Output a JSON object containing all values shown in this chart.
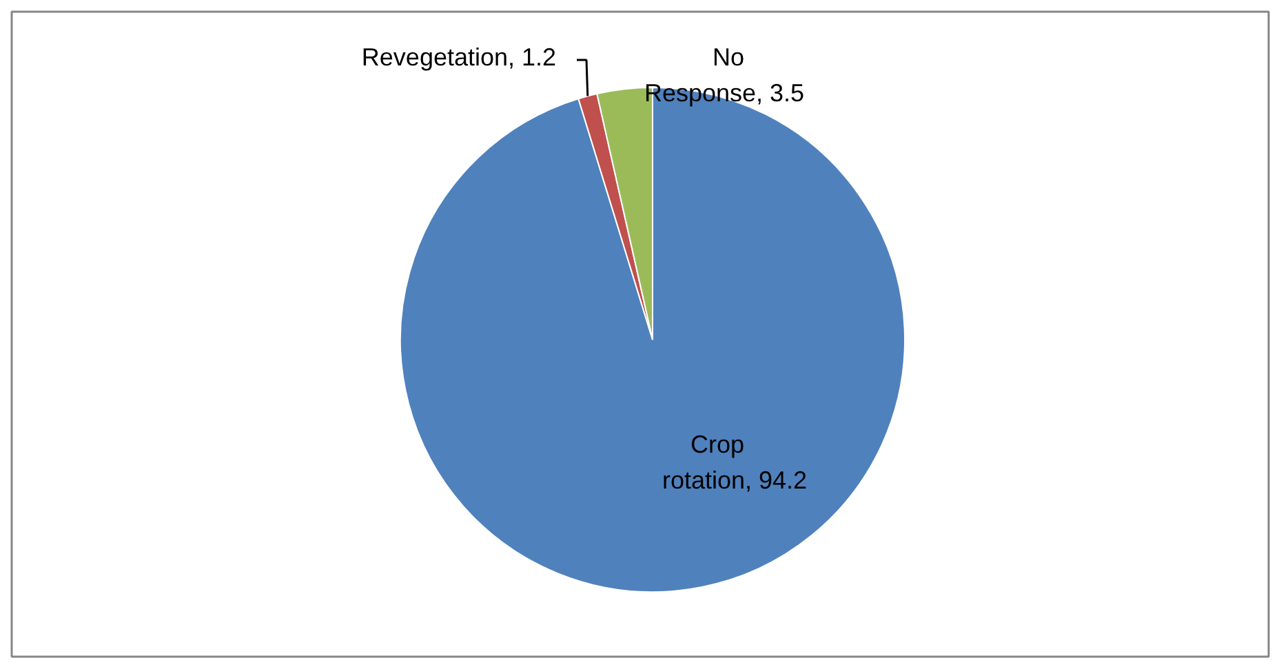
{
  "chart_data": {
    "type": "pie",
    "categories": [
      "Crop rotation",
      "Revegetation",
      "No Response"
    ],
    "values": [
      94.2,
      1.2,
      3.5
    ],
    "value_labels": [
      ", 94.2",
      ", 1.2",
      ", 3.5"
    ],
    "colors": [
      "#4f81bd",
      "#c0504d",
      "#9bbb59"
    ]
  }
}
